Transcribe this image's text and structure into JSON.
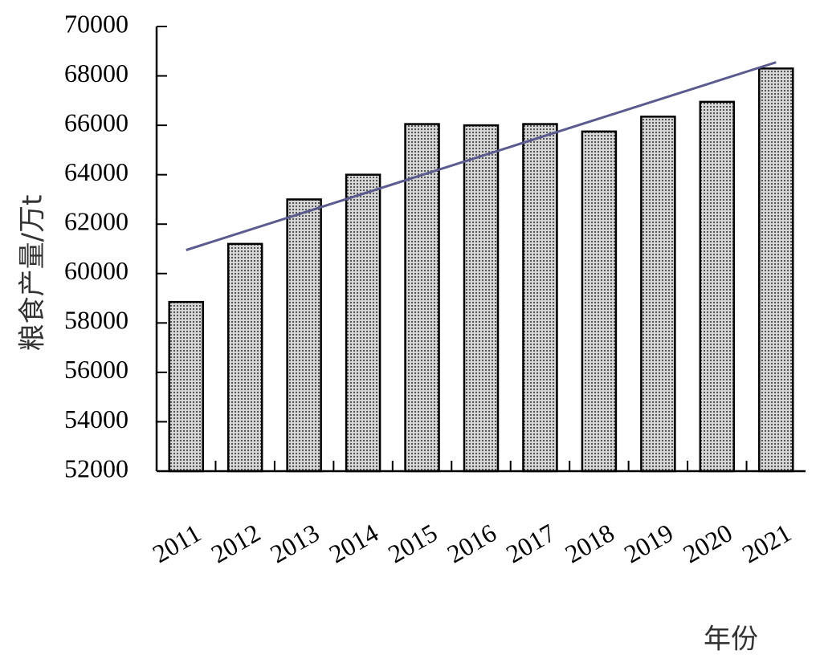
{
  "chart_data": {
    "type": "bar",
    "x_label": "年份",
    "y_label": "粮食产量/万t",
    "categories": [
      "2011",
      "2012",
      "2013",
      "2014",
      "2015",
      "2016",
      "2017",
      "2018",
      "2019",
      "2020",
      "2021"
    ],
    "values": [
      58850,
      61200,
      63000,
      64000,
      66050,
      66000,
      66050,
      65750,
      66350,
      66950,
      68300
    ],
    "color": "#bdbdbd",
    "trend_line": {
      "color": "#5b5b8f",
      "values": [
        60950,
        68550
      ]
    },
    "ylim": [
      52000,
      70000
    ],
    "yticks": [
      52000,
      54000,
      56000,
      58000,
      60000,
      62000,
      64000,
      66000,
      68000,
      70000
    ],
    "grid": false
  }
}
